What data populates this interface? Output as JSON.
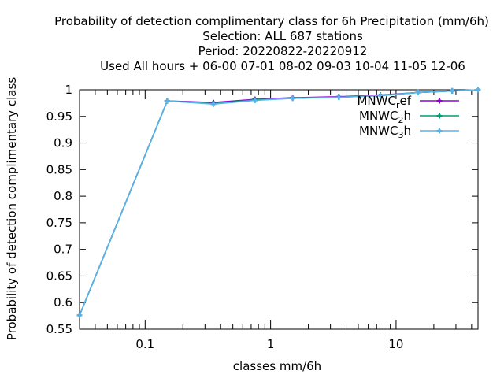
{
  "chart_data": {
    "type": "line",
    "title_lines": [
      "Probability of detection complimentary class  for 6h Precipitation (mm/6h)",
      "Selection: ALL    687 stations",
      "Period: 20220822-20220912",
      "Used  All hours  + 06-00 07-01 08-02 09-03 10-04 11-05 12-06"
    ],
    "xlabel": "classes mm/6h",
    "ylabel": "Probability of detection complimentary class",
    "x_scale": "log",
    "xlim": [
      0.03,
      45
    ],
    "ylim": [
      0.55,
      1.0
    ],
    "x_ticks": [
      0.1,
      1,
      10
    ],
    "x_tick_labels": [
      "0.1",
      "1",
      "10"
    ],
    "y_ticks": [
      0.55,
      0.6,
      0.65,
      0.7,
      0.75,
      0.8,
      0.85,
      0.9,
      0.95,
      1.0
    ],
    "y_tick_labels": [
      "0.55",
      "0.6",
      "0.65",
      "0.7",
      "0.75",
      "0.8",
      "0.85",
      "0.9",
      "0.95",
      "1"
    ],
    "grid": false,
    "legend_position": "top-right",
    "x": [
      0.03,
      0.15,
      0.35,
      0.75,
      1.5,
      3.5,
      7.5,
      15,
      28,
      45
    ],
    "series": [
      {
        "name": "MNWC",
        "sub": "r",
        "suffix": "ef",
        "color": "#9400d3",
        "values": [
          0.576,
          0.979,
          0.976,
          0.982,
          0.985,
          0.987,
          0.99,
          0.995,
          0.998,
          1.0
        ]
      },
      {
        "name": "MNWC",
        "sub": "2",
        "suffix": "h",
        "color": "#009e73",
        "values": [
          0.576,
          0.979,
          0.974,
          0.981,
          0.984,
          0.986,
          0.989,
          0.995,
          0.998,
          1.0
        ]
      },
      {
        "name": "MNWC",
        "sub": "3",
        "suffix": "h",
        "color": "#56b4e9",
        "values": [
          0.576,
          0.979,
          0.973,
          0.98,
          0.984,
          0.986,
          0.989,
          0.995,
          0.998,
          1.0
        ]
      }
    ]
  }
}
